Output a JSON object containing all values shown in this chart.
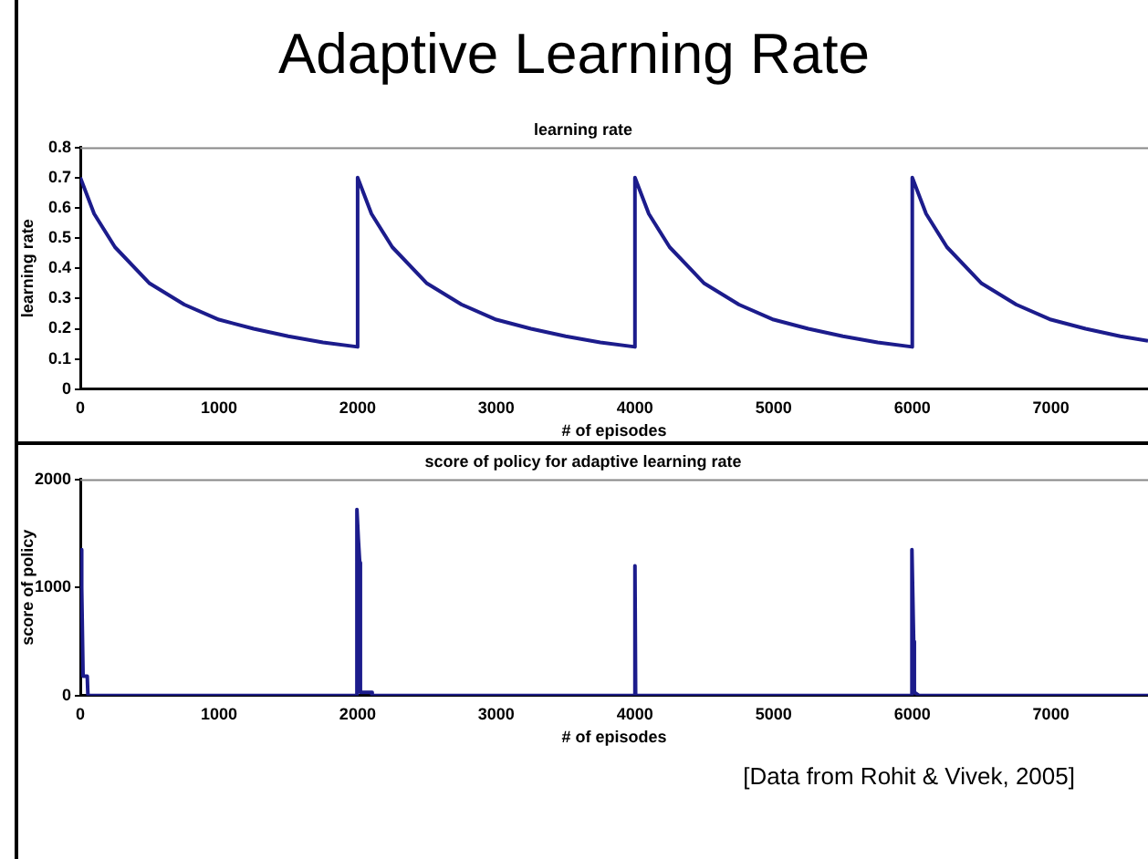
{
  "chart_data": [
    {
      "type": "line",
      "title": "learning rate",
      "xlabel": "# of episodes",
      "ylabel": "learning rate",
      "annotations": [
        "Adaptive Learning Rate"
      ],
      "series": [
        {
          "color": "#1c1c8c",
          "x": [
            0,
            100,
            250,
            500,
            750,
            1000,
            1250,
            1500,
            1750,
            2000,
            2000,
            2100,
            2250,
            2500,
            2750,
            3000,
            3250,
            3500,
            3750,
            4000,
            4000,
            4100,
            4250,
            4500,
            4750,
            5000,
            5250,
            5500,
            5750,
            6000,
            6000,
            6100,
            6250,
            6500,
            6750,
            7000,
            7250,
            7500,
            7700
          ],
          "values": [
            0.7,
            0.58,
            0.47,
            0.35,
            0.28,
            0.23,
            0.2,
            0.175,
            0.155,
            0.14,
            0.7,
            0.58,
            0.47,
            0.35,
            0.28,
            0.23,
            0.2,
            0.175,
            0.155,
            0.14,
            0.7,
            0.58,
            0.47,
            0.35,
            0.28,
            0.23,
            0.2,
            0.175,
            0.155,
            0.14,
            0.7,
            0.58,
            0.47,
            0.35,
            0.28,
            0.23,
            0.2,
            0.175,
            0.16
          ]
        }
      ],
      "xlim": [
        0,
        7700
      ],
      "xticks": [
        0,
        1000,
        2000,
        3000,
        4000,
        5000,
        6000,
        7000
      ],
      "ylim": [
        0,
        0.8
      ],
      "yticks": [
        0,
        0.1,
        0.2,
        0.3,
        0.4,
        0.5,
        0.6,
        0.7,
        0.8
      ],
      "grid": false,
      "legend": false
    },
    {
      "type": "line",
      "title": "score of policy for adaptive learning rate",
      "xlabel": "# of episodes",
      "ylabel": "score of policy",
      "annotations": [
        "[Data from Rohit & Vivek, 2005]"
      ],
      "series": [
        {
          "color": "#1c1c8c",
          "x": [
            0,
            10,
            20,
            50,
            55,
            1990,
            1995,
            2005,
            2015,
            2020,
            2100,
            2105,
            3995,
            4000,
            4005,
            5990,
            5995,
            6000,
            6010,
            6015,
            6050,
            7700
          ],
          "values": [
            1350,
            1000,
            180,
            180,
            0,
            0,
            1720,
            1450,
            1230,
            30,
            30,
            0,
            0,
            1200,
            0,
            0,
            800,
            1350,
            500,
            30,
            0,
            0
          ]
        }
      ],
      "xlim": [
        0,
        7700
      ],
      "xticks": [
        0,
        1000,
        2000,
        3000,
        4000,
        5000,
        6000,
        7000
      ],
      "ylim": [
        0,
        2000
      ],
      "yticks": [
        0,
        1000,
        2000
      ],
      "grid": false,
      "legend": false
    }
  ]
}
